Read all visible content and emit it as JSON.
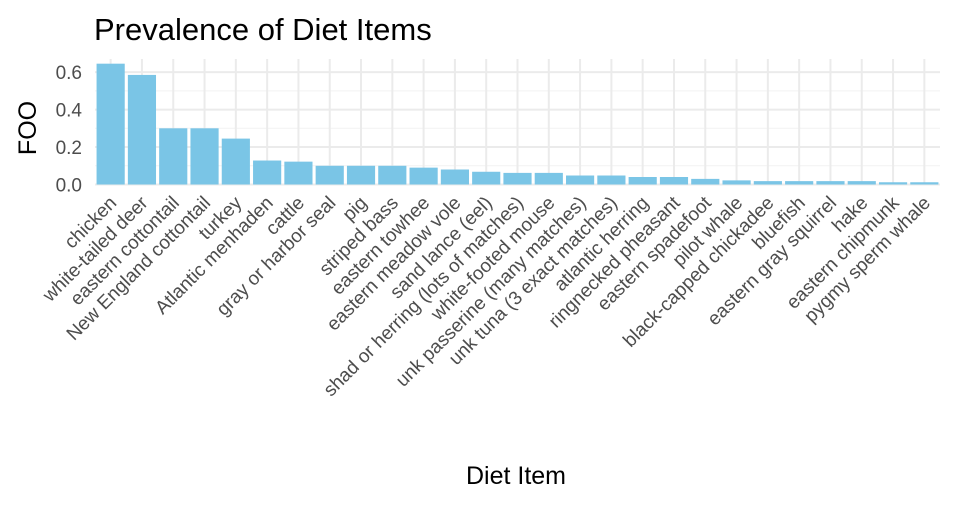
{
  "chart_data": {
    "type": "bar",
    "title": "Prevalence of Diet Items",
    "xlabel": "Diet Item",
    "ylabel": "FOO",
    "ylim": [
      0,
      0.67
    ],
    "yticks": [
      0.0,
      0.2,
      0.4,
      0.6
    ],
    "ytick_labels": [
      "0.0",
      "0.2",
      "0.4",
      "0.6"
    ],
    "grid": true,
    "bar_color": "#7ac5e6",
    "categories": [
      "chicken",
      "white-tailed deer",
      "eastern cottontail",
      "New England cottontail",
      "turkey",
      "Atlantic menhaden",
      "cattle",
      "gray or harbor seal",
      "pig",
      "striped bass",
      "eastern towhee",
      "eastern meadow vole",
      "sand lance (eel)",
      "shad or herring (lots of matches)",
      "white-footed mouse",
      "unk passerine (many matches)",
      "unk tuna (3 exact matches)",
      "atlantic herring",
      "ringnecked pheasant",
      "eastern spadefoot",
      "pilot whale",
      "black-capped chickadee",
      "bluefish",
      "eastern gray squirrel",
      "hake",
      "eastern chipmunk",
      "pygmy sperm whale"
    ],
    "values": [
      0.645,
      0.585,
      0.3,
      0.3,
      0.245,
      0.128,
      0.122,
      0.1,
      0.1,
      0.1,
      0.09,
      0.08,
      0.068,
      0.062,
      0.062,
      0.048,
      0.048,
      0.04,
      0.04,
      0.03,
      0.022,
      0.018,
      0.018,
      0.018,
      0.018,
      0.012,
      0.012
    ]
  }
}
